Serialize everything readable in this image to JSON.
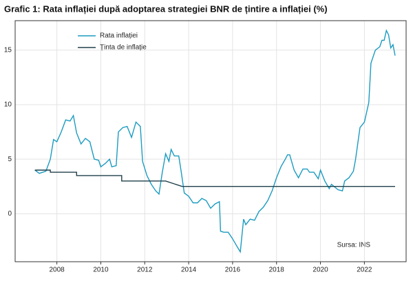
{
  "chart_data": {
    "type": "line",
    "title": "Grafic 1: Rata inflației după adoptarea strategiei BNR de țintire a inflației (%)",
    "annotation": "Sursa: INS",
    "xlim": [
      2006.1,
      2023.9
    ],
    "xticks": [
      2008,
      2010,
      2012,
      2014,
      2016,
      2018,
      2020,
      2022
    ],
    "ylim": [
      -4.4,
      17.7
    ],
    "yticks": [
      0,
      5,
      10,
      15
    ],
    "grid": true,
    "legend": "top-left",
    "series": [
      {
        "name": "Rata inflației",
        "color": "#1a9bc0",
        "x": [
          2007.0,
          2007.2,
          2007.5,
          2007.7,
          2007.85,
          2008.0,
          2008.2,
          2008.4,
          2008.6,
          2008.75,
          2008.9,
          2009.1,
          2009.3,
          2009.5,
          2009.7,
          2009.9,
          2010.0,
          2010.2,
          2010.4,
          2010.5,
          2010.7,
          2010.8,
          2011.0,
          2011.2,
          2011.4,
          2011.6,
          2011.8,
          2011.9,
          2012.1,
          2012.3,
          2012.5,
          2012.65,
          2012.8,
          2012.95,
          2013.1,
          2013.2,
          2013.35,
          2013.55,
          2013.65,
          2013.8,
          2014.0,
          2014.2,
          2014.4,
          2014.6,
          2014.8,
          2015.0,
          2015.2,
          2015.4,
          2015.45,
          2015.6,
          2015.8,
          2016.0,
          2016.2,
          2016.35,
          2016.5,
          2016.6,
          2016.8,
          2017.0,
          2017.2,
          2017.4,
          2017.6,
          2017.8,
          2018.0,
          2018.2,
          2018.4,
          2018.5,
          2018.6,
          2018.8,
          2019.0,
          2019.2,
          2019.4,
          2019.5,
          2019.7,
          2019.9,
          2020.0,
          2020.2,
          2020.4,
          2020.5,
          2020.8,
          2021.0,
          2021.1,
          2021.3,
          2021.5,
          2021.6,
          2021.8,
          2022.0,
          2022.2,
          2022.3,
          2022.5,
          2022.7,
          2022.8,
          2022.9,
          2023.0,
          2023.1,
          2023.2,
          2023.3,
          2023.4
        ],
        "values": [
          4.0,
          3.7,
          3.9,
          5.0,
          6.8,
          6.6,
          7.5,
          8.6,
          8.5,
          9.0,
          7.4,
          6.4,
          6.9,
          6.6,
          5.0,
          4.9,
          4.3,
          4.6,
          5.0,
          4.3,
          4.4,
          7.5,
          7.9,
          8.0,
          7.0,
          8.4,
          8.0,
          4.8,
          3.5,
          2.7,
          2.1,
          1.8,
          3.8,
          5.5,
          4.8,
          5.9,
          5.3,
          5.3,
          4.0,
          1.9,
          1.6,
          1.0,
          1.0,
          1.4,
          1.2,
          0.5,
          0.9,
          1.1,
          -1.6,
          -1.7,
          -1.7,
          -2.3,
          -3.0,
          -3.5,
          -0.5,
          -1.0,
          -0.5,
          -0.6,
          0.2,
          0.6,
          1.2,
          2.1,
          3.3,
          4.3,
          5.0,
          5.4,
          5.4,
          4.0,
          3.3,
          4.1,
          4.1,
          3.8,
          3.8,
          3.2,
          4.0,
          3.0,
          2.3,
          2.7,
          2.2,
          2.1,
          3.0,
          3.3,
          3.9,
          5.0,
          7.9,
          8.4,
          10.2,
          13.8,
          15.0,
          15.3,
          15.9,
          15.9,
          16.8,
          16.4,
          15.2,
          15.5,
          14.5
        ]
      },
      {
        "name": "Ținta de inflație",
        "color": "#1f3f4a",
        "x": [
          2007.0,
          2007.7,
          2007.7,
          2008.9,
          2008.9,
          2010.95,
          2010.95,
          2012.95,
          2012.95,
          2013.7,
          2023.4
        ],
        "values": [
          4.0,
          4.0,
          3.8,
          3.8,
          3.5,
          3.5,
          3.0,
          3.0,
          3.0,
          2.5,
          2.5
        ]
      }
    ]
  }
}
